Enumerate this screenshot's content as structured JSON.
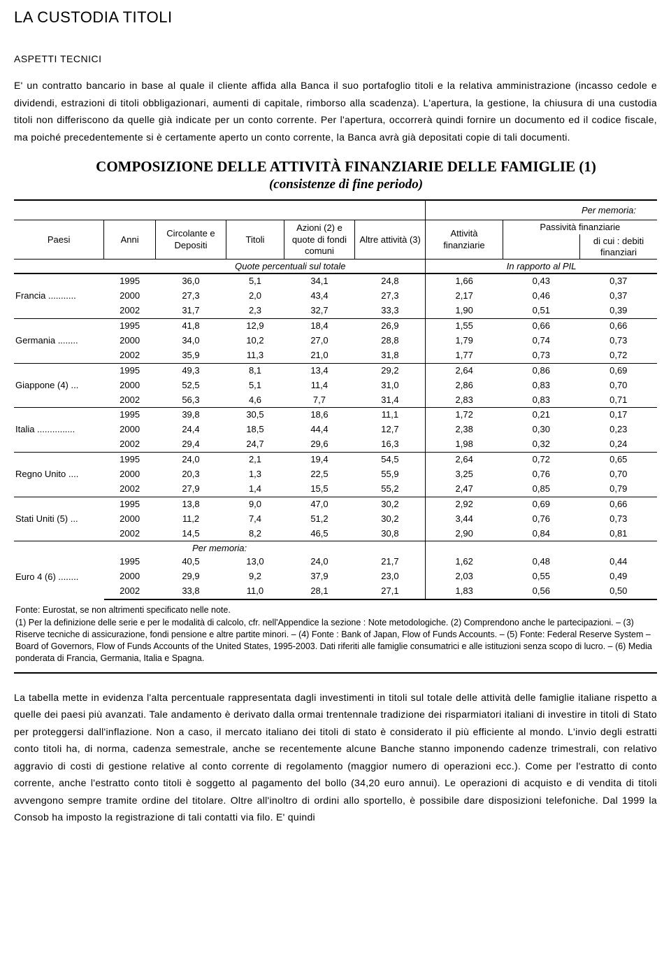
{
  "doc": {
    "title": "LA CUSTODIA TITOLI",
    "section_label": "ASPETTI TECNICI",
    "para1": "E' un contratto bancario in base al quale il cliente affida alla Banca il suo portafoglio titoli e la relativa amministrazione (incasso cedole e dividendi, estrazioni di titoli obbligazionari, aumenti di capitale, rimborso alla scadenza). L'apertura, la gestione, la chiusura di una custodia titoli non differiscono da quelle già indicate per un conto corrente. Per l'apertura, occorrerà quindi fornire un documento ed il codice fiscale, ma poiché precedentemente si è certamente aperto un conto corrente, la Banca avrà già depositati copie di tali documenti.",
    "para2": "La tabella mette in evidenza l'alta percentuale rappresentata dagli investimenti in titoli sul totale delle attività delle famiglie italiane rispetto a quelle dei paesi più avanzati. Tale andamento è derivato dalla ormai trentennale tradizione dei risparmiatori italiani di investire in titoli di Stato per proteggersi dall'inflazione. Non a caso, il mercato italiano dei titoli di stato è considerato il più efficiente al mondo. L'invio degli estratti conto titoli ha, di norma, cadenza semestrale, anche se recentemente alcune Banche stanno imponendo cadenze trimestrali, con relativo aggravio di costi di gestione relative al conto corrente di regolamento (maggior numero di operazioni ecc.). Come per l'estratto di conto corrente, anche l'estratto conto titoli è soggetto al pagamento del bollo (34,20 euro annui). Le operazioni di acquisto e di vendita di titoli avvengono sempre tramite ordine del titolare. Oltre all'inoltro di ordini allo sportello, è possibile dare disposizioni telefoniche. Dal 1999 la Consob ha imposto la registrazione di tali contatti via filo. E' quindi"
  },
  "table": {
    "title": "COMPOSIZIONE DELLE ATTIVITÀ FINANZIARIE DELLE FAMIGLIE (1)",
    "subtitle": "(consistenze di fine periodo)",
    "headers": {
      "paesi": "Paesi",
      "anni": "Anni",
      "circolante": "Circolante e Depositi",
      "titoli": "Titoli",
      "azioni": "Azioni (2) e quote di fondi comuni",
      "altre": "Altre attività (3)",
      "memoria": "Per memoria:",
      "attivita_fin": "Attività finanziarie",
      "passivita": "Passività  finanziarie",
      "dicui": "di cui : debiti finanziari",
      "quote": "Quote percentuali sul totale",
      "rapporto": "In rapporto al PIL"
    },
    "countries": [
      {
        "name": "Francia ...........",
        "rows": [
          [
            "1995",
            "36,0",
            "5,1",
            "34,1",
            "24,8",
            "1,66",
            "0,43",
            "0,37"
          ],
          [
            "2000",
            "27,3",
            "2,0",
            "43,4",
            "27,3",
            "2,17",
            "0,46",
            "0,37"
          ],
          [
            "2002",
            "31,7",
            "2,3",
            "32,7",
            "33,3",
            "1,90",
            "0,51",
            "0,39"
          ]
        ]
      },
      {
        "name": "Germania ........",
        "rows": [
          [
            "1995",
            "41,8",
            "12,9",
            "18,4",
            "26,9",
            "1,55",
            "0,66",
            "0,66"
          ],
          [
            "2000",
            "34,0",
            "10,2",
            "27,0",
            "28,8",
            "1,79",
            "0,74",
            "0,73"
          ],
          [
            "2002",
            "35,9",
            "11,3",
            "21,0",
            "31,8",
            "1,77",
            "0,73",
            "0,72"
          ]
        ]
      },
      {
        "name": "Giappone (4) ...",
        "rows": [
          [
            "1995",
            "49,3",
            "8,1",
            "13,4",
            "29,2",
            "2,64",
            "0,86",
            "0,69"
          ],
          [
            "2000",
            "52,5",
            "5,1",
            "11,4",
            "31,0",
            "2,86",
            "0,83",
            "0,70"
          ],
          [
            "2002",
            "56,3",
            "4,6",
            "7,7",
            "31,4",
            "2,83",
            "0,83",
            "0,71"
          ]
        ]
      },
      {
        "name": "Italia ...............",
        "rows": [
          [
            "1995",
            "39,8",
            "30,5",
            "18,6",
            "11,1",
            "1,72",
            "0,21",
            "0,17"
          ],
          [
            "2000",
            "24,4",
            "18,5",
            "44,4",
            "12,7",
            "2,38",
            "0,30",
            "0,23"
          ],
          [
            "2002",
            "29,4",
            "24,7",
            "29,6",
            "16,3",
            "1,98",
            "0,32",
            "0,24"
          ]
        ]
      },
      {
        "name": "Regno Unito ....",
        "rows": [
          [
            "1995",
            "24,0",
            "2,1",
            "19,4",
            "54,5",
            "2,64",
            "0,72",
            "0,65"
          ],
          [
            "2000",
            "20,3",
            "1,3",
            "22,5",
            "55,9",
            "3,25",
            "0,76",
            "0,70"
          ],
          [
            "2002",
            "27,9",
            "1,4",
            "15,5",
            "55,2",
            "2,47",
            "0,85",
            "0,79"
          ]
        ]
      },
      {
        "name": "Stati Uniti (5) ...",
        "rows": [
          [
            "1995",
            "13,8",
            "9,0",
            "47,0",
            "30,2",
            "2,92",
            "0,69",
            "0,66"
          ],
          [
            "2000",
            "11,2",
            "7,4",
            "51,2",
            "30,2",
            "3,44",
            "0,76",
            "0,73"
          ],
          [
            "2002",
            "14,5",
            "8,2",
            "46,5",
            "30,8",
            "2,90",
            "0,84",
            "0,81"
          ]
        ]
      }
    ],
    "memoria_label": "Per memoria:",
    "memoria_country": {
      "name": "Euro 4 (6) ........",
      "rows": [
        [
          "1995",
          "40,5",
          "13,0",
          "24,0",
          "21,7",
          "1,62",
          "0,48",
          "0,44"
        ],
        [
          "2000",
          "29,9",
          "9,2",
          "37,9",
          "23,0",
          "2,03",
          "0,55",
          "0,49"
        ],
        [
          "2002",
          "33,8",
          "11,0",
          "28,1",
          "27,1",
          "1,83",
          "0,56",
          "0,50"
        ]
      ]
    },
    "footnotes": [
      "Fonte: Eurostat, se non altrimenti specificato nelle note.",
      "(1) Per la definizione delle serie e per le modalità di calcolo, cfr. nell'Appendice la sezione : Note metodologiche. (2) Comprendono anche le partecipazioni. – (3) Riserve tecniche di assicurazione, fondi pensione e altre partite minori. – (4) Fonte : Bank of Japan, Flow of Funds Accounts. – (5) Fonte: Federal Reserve System – Board of Governors, Flow of Funds Accounts of the United States, 1995-2003. Dati riferiti alle famiglie consumatrici e alle istituzioni senza scopo di lucro. – (6) Media ponderata di Francia, Germania, Italia e Spagna."
    ]
  },
  "style": {
    "text_color": "#000000",
    "bg_color": "#ffffff",
    "body_font_size_pt": 11,
    "table_font_size_pt": 10,
    "title_font_size_pt": 17,
    "border_color": "#000000"
  }
}
